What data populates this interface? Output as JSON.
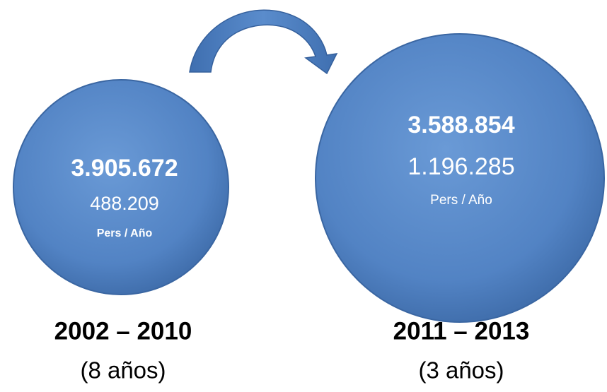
{
  "periods": [
    {
      "total": "3.905.672",
      "per_year": "488.209",
      "unit": "Pers / Año",
      "range": "2002 – 2010",
      "duration": "(8 años)"
    },
    {
      "total": "3.588.854",
      "per_year": "1.196.285",
      "unit": "Pers / Año",
      "range": "2011 – 2013",
      "duration": "(3 años)"
    }
  ]
}
